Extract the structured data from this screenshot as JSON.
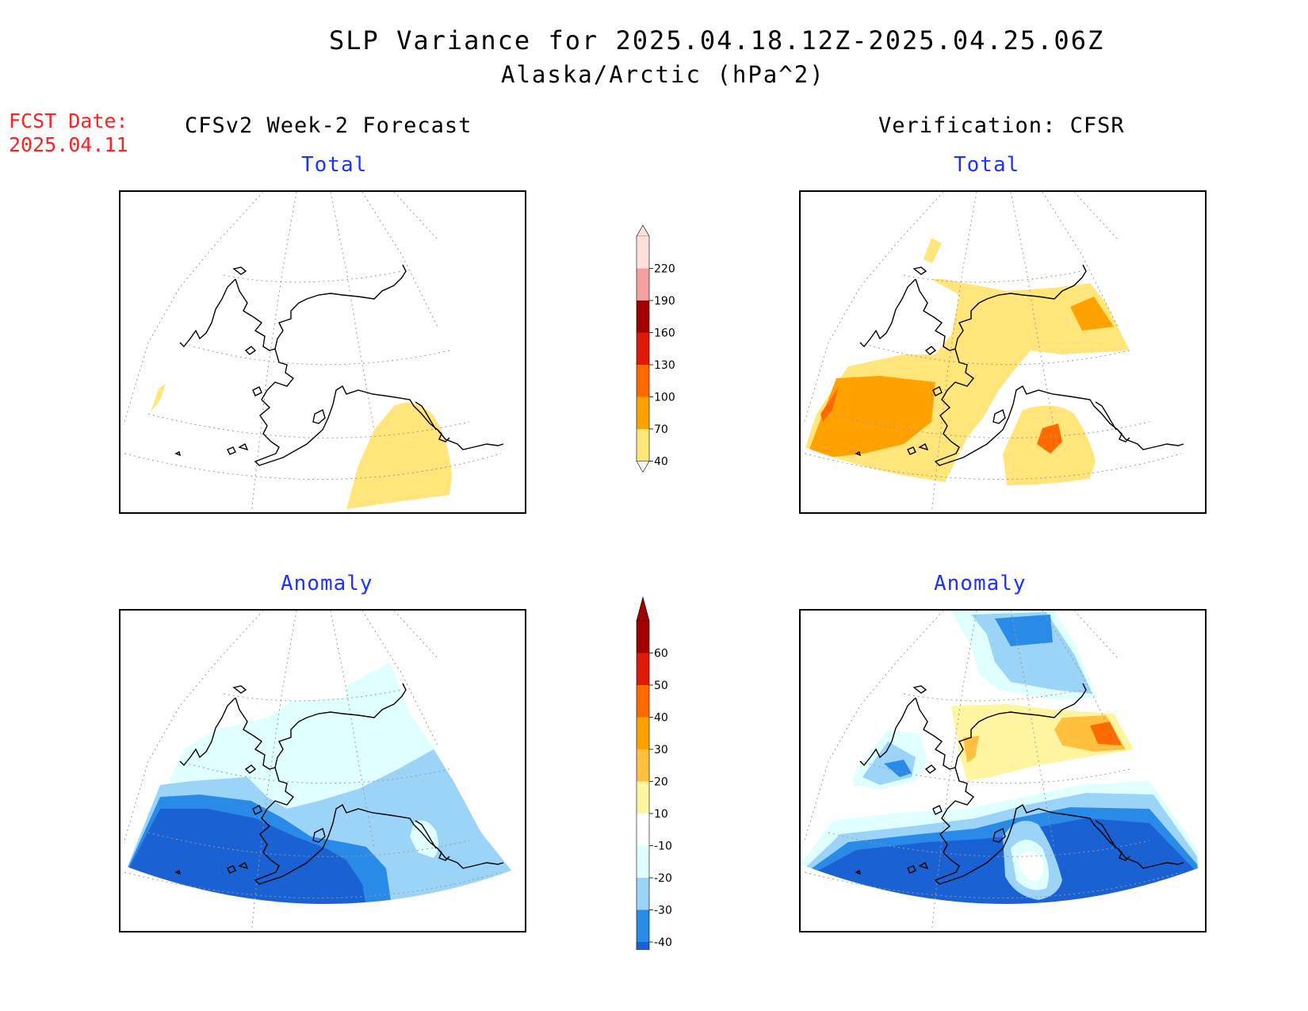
{
  "header": {
    "title": "SLP Variance for 2025.04.18.12Z-2025.04.25.06Z",
    "subtitle": "Alaska/Arctic (hPa^2)"
  },
  "fcst_date": {
    "label": "FCST Date:",
    "value": "2025.04.11"
  },
  "columns": {
    "left": "CFSv2 Week-2 Forecast",
    "right": "Verification: CFSR"
  },
  "panels": {
    "top_left": "Total",
    "top_right": "Total",
    "bottom_left": "Anomaly",
    "bottom_right": "Anomaly"
  },
  "colorbar_total": {
    "labels": [
      "220",
      "190",
      "160",
      "130",
      "100",
      "70",
      "40"
    ],
    "colors": [
      "#fde0dc",
      "#f4a0a0",
      "#a00000",
      "#e01a0a",
      "#ff6a00",
      "#ffa200",
      "#ffe57a"
    ]
  },
  "colorbar_anomaly": {
    "labels": [
      "60",
      "50",
      "40",
      "30",
      "20",
      "10",
      "-10",
      "-20",
      "-30",
      "-40"
    ],
    "colors": [
      "#a00000",
      "#e01a0a",
      "#ff6a00",
      "#ffa200",
      "#ffc040",
      "#fff5a0",
      "#ffffff",
      "#e0ffff",
      "#9bd4f7",
      "#2a8ae8",
      "#1a62d4"
    ]
  },
  "colors": {
    "yellow": "#ffe57a",
    "orange": "#ffa200",
    "dark_orange": "#ff6a00",
    "light_yellow": "#fff5a0",
    "gold": "#ffc040",
    "cyan_light": "#e0ffff",
    "blue_light": "#9bd4f7",
    "blue_mid": "#2a8ae8",
    "blue_dark": "#1a62d4"
  }
}
